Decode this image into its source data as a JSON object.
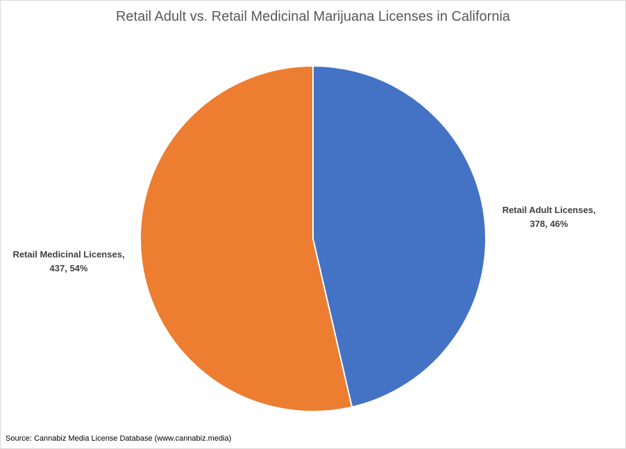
{
  "chart_data": {
    "type": "pie",
    "title": "Retail Adult vs. Retail Medicinal Marijuana Licenses in California",
    "slices": [
      {
        "name": "Retail Adult Licenses,",
        "value": 378,
        "value_label": "378, 46%",
        "percent": 46,
        "color": "#4472C4"
      },
      {
        "name": "Retail Medicinal Licenses,",
        "value": 437,
        "value_label": "437, 54%",
        "percent": 54,
        "color": "#ED7D31"
      }
    ],
    "start_angle_deg": 0,
    "direction": "clockwise",
    "slice_border_color": "#ffffff"
  },
  "source": "Source:  Cannabiz Media License Database (www.cannabiz.media)"
}
